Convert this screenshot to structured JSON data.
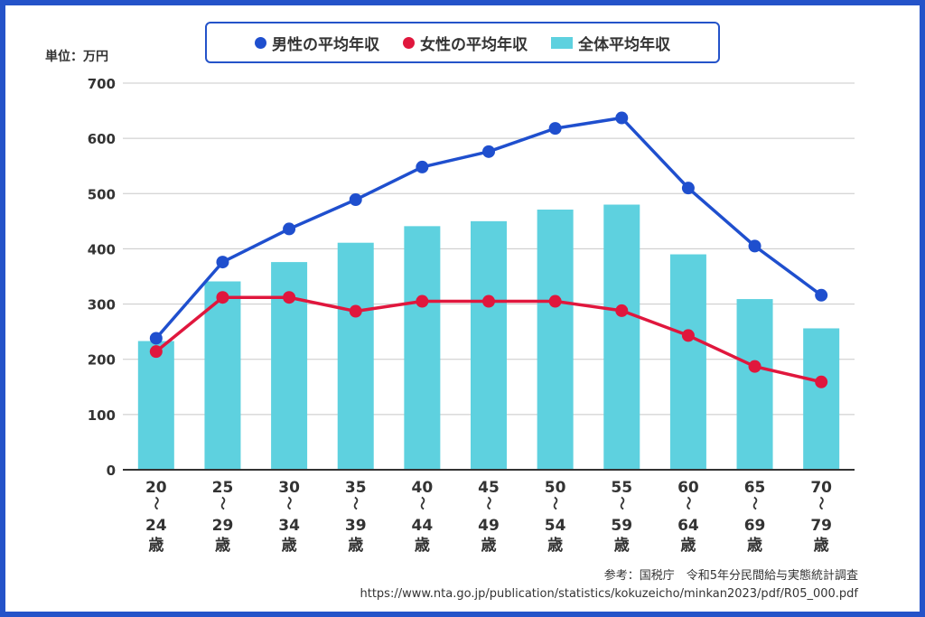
{
  "unit_label": "単位：万円",
  "source": {
    "line1": "参考：国税庁　令和5年分民間給与実態統計調査",
    "line2": "https://www.nta.go.jp/publication/statistics/kokuzeicho/minkan2023/pdf/R05_000.pdf"
  },
  "colors": {
    "male": "#1f4fce",
    "female": "#e0173d",
    "all": "#5ed1df",
    "frame": "#2453c9"
  },
  "chart_data": {
    "type": "bar",
    "categories": [
      {
        "from": "20",
        "to": "24",
        "suffix": "歳"
      },
      {
        "from": "25",
        "to": "29",
        "suffix": "歳"
      },
      {
        "from": "30",
        "to": "34",
        "suffix": "歳"
      },
      {
        "from": "35",
        "to": "39",
        "suffix": "歳"
      },
      {
        "from": "40",
        "to": "44",
        "suffix": "歳"
      },
      {
        "from": "45",
        "to": "49",
        "suffix": "歳"
      },
      {
        "from": "50",
        "to": "54",
        "suffix": "歳"
      },
      {
        "from": "55",
        "to": "59",
        "suffix": "歳"
      },
      {
        "from": "60",
        "to": "64",
        "suffix": "歳"
      },
      {
        "from": "65",
        "to": "69",
        "suffix": "歳"
      },
      {
        "from": "70",
        "to": "79",
        "suffix": "歳"
      }
    ],
    "range_mark": "〜",
    "series": [
      {
        "name": "男性の平均年収",
        "kind": "line",
        "values": [
          238,
          376,
          436,
          489,
          548,
          576,
          618,
          637,
          510,
          405,
          316
        ]
      },
      {
        "name": "女性の平均年収",
        "kind": "line",
        "values": [
          214,
          312,
          312,
          287,
          305,
          305,
          305,
          288,
          243,
          187,
          159
        ]
      },
      {
        "name": "全体平均年収",
        "kind": "bar",
        "values": [
          233,
          341,
          376,
          411,
          441,
          450,
          471,
          480,
          390,
          309,
          256
        ]
      }
    ],
    "ylim": [
      0,
      700
    ],
    "yticks": [
      "0",
      "100",
      "200",
      "300",
      "400",
      "500",
      "600",
      "700"
    ],
    "grid": true,
    "legend_position": "top-center"
  }
}
